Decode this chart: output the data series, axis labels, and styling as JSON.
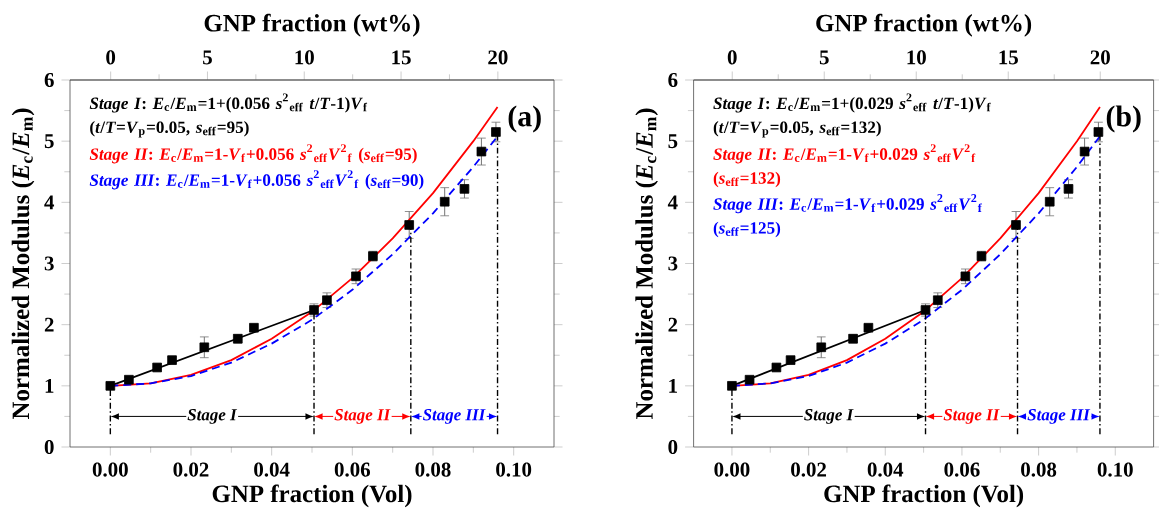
{
  "chart_data": [
    {
      "type": "scatter",
      "xlabel": "GNP fraction (Vol)",
      "x2label": "GNP fraction (wt%)",
      "ylabel": "Normalized Modulus (*E*$_{c}$/*E*$_{m}$)",
      "xlim": [
        -0.01,
        0.11
      ],
      "xticks": [
        {
          "value": 0,
          "label": "0.00"
        },
        {
          "value": 0.02,
          "label": "0.02"
        },
        {
          "value": 0.04,
          "label": "0.04"
        },
        {
          "value": 0.06,
          "label": "0.06"
        },
        {
          "value": 0.08,
          "label": "0.08"
        },
        {
          "value": 0.1,
          "label": "0.10"
        }
      ],
      "x2lim": [
        -2.1,
        22.9
      ],
      "x2ticks": [
        0,
        5,
        10,
        15,
        20
      ],
      "ylim": [
        0,
        6
      ],
      "yticks": [
        0,
        1,
        2,
        3,
        4,
        5,
        6
      ],
      "series": [
        {
          "color": "#000000",
          "marker": "square",
          "x": [
            0,
            0.0046,
            0.0116,
            0.0153,
            0.0233,
            0.0316,
            0.0356,
            0.0505,
            0.0537,
            0.0609,
            0.0651,
            0.0741,
            0.0829,
            0.0878,
            0.092,
            0.0956
          ],
          "values": [
            1.0,
            1.1,
            1.3,
            1.42,
            1.63,
            1.77,
            1.95,
            2.24,
            2.4,
            2.79,
            3.12,
            3.63,
            4.01,
            4.22,
            4.83,
            5.15
          ],
          "errors": [
            null,
            null,
            null,
            0.05,
            0.17,
            0.07,
            null,
            0.1,
            0.12,
            0.12,
            0.08,
            0.22,
            0.23,
            0.15,
            0.22,
            0.16
          ]
        },
        {
          "type": "line",
          "name": "*Stage I*: *E*$_{c}$/*E*$_{m}$=1+(0.056 *s*$^{2}$$_{eff}$ *t*/*T*-1)*V*$_{f}$ (*t*/*T*=*V*$_{p}$=0.05, *s*$_{eff}$=95)",
          "color": "#000000",
          "line_style": "solid",
          "marker": "none",
          "x": [
            0,
            0.0505
          ],
          "values": [
            1.0,
            2.24
          ]
        },
        {
          "type": "line",
          "name": "*Stage II*: *E*$_{c}$/*E*$_{m}$=1-*V*$_{f}$+0.056 *s*$^{2}$$_{eff}$*V*$^{2}$$_{f}$ (*s*$_{eff}$=95)",
          "color": "#ff0000",
          "line_style": "solid",
          "marker": "none",
          "x": [
            0,
            0.01,
            0.02,
            0.03,
            0.04,
            0.05,
            0.06,
            0.07,
            0.08,
            0.09,
            0.096
          ],
          "values": [
            1.0,
            1.04,
            1.18,
            1.42,
            1.77,
            2.21,
            2.76,
            3.41,
            4.15,
            5.0,
            5.56
          ]
        },
        {
          "type": "line",
          "name": "*Stage III*: *E*$_{c}$/*E*$_{m}$=1-*V*$_{f}$+0.056 *s*$^{2}$$_{eff}$*V*$^{2}$$_{f}$ (*s*$_{eff}$=90)",
          "color": "#0000ff",
          "line_style": "dashed",
          "marker": "none",
          "x": [
            0,
            0.01,
            0.02,
            0.03,
            0.04,
            0.05,
            0.06,
            0.07,
            0.08,
            0.09,
            0.096
          ],
          "values": [
            1.0,
            1.04,
            1.16,
            1.38,
            1.69,
            2.08,
            2.57,
            3.15,
            3.82,
            4.58,
            5.08
          ]
        }
      ],
      "ref_lines": [
        {
          "axis": "x",
          "value": 0,
          "color": "#000000"
        },
        {
          "axis": "x",
          "value": 0.0505,
          "color": "#000000"
        },
        {
          "axis": "x",
          "value": 0.0745,
          "color": "#000000"
        },
        {
          "axis": "x",
          "value": 0.096,
          "color": "#000000"
        }
      ],
      "annotations": [
        "(a)",
        "*Stage I*",
        "*Stage II*",
        "*Stage III*"
      ]
    },
    {
      "type": "scatter",
      "xlabel": "GNP fraction (Vol)",
      "x2label": "GNP fraction (wt%)",
      "ylabel": "Normalized Modulus (*E*$_{c}$/*E*$_{m}$)",
      "xlim": [
        -0.01,
        0.11
      ],
      "xticks": [
        {
          "value": 0,
          "label": "0.00"
        },
        {
          "value": 0.02,
          "label": "0.02"
        },
        {
          "value": 0.04,
          "label": "0.04"
        },
        {
          "value": 0.06,
          "label": "0.06"
        },
        {
          "value": 0.08,
          "label": "0.08"
        },
        {
          "value": 0.1,
          "label": "0.10"
        }
      ],
      "x2lim": [
        -2.1,
        22.9
      ],
      "x2ticks": [
        0,
        5,
        10,
        15,
        20
      ],
      "ylim": [
        0,
        6
      ],
      "yticks": [
        0,
        1,
        2,
        3,
        4,
        5,
        6
      ],
      "series": [
        {
          "color": "#000000",
          "marker": "square",
          "x": [
            0,
            0.0046,
            0.0116,
            0.0153,
            0.0233,
            0.0316,
            0.0356,
            0.0505,
            0.0537,
            0.0609,
            0.0651,
            0.0741,
            0.0829,
            0.0878,
            0.092,
            0.0956
          ],
          "values": [
            1.0,
            1.1,
            1.3,
            1.42,
            1.63,
            1.77,
            1.95,
            2.24,
            2.4,
            2.79,
            3.12,
            3.63,
            4.01,
            4.22,
            4.83,
            5.15
          ],
          "errors": [
            null,
            null,
            null,
            0.05,
            0.17,
            0.07,
            null,
            0.1,
            0.12,
            0.12,
            0.08,
            0.22,
            0.23,
            0.15,
            0.22,
            0.16
          ]
        },
        {
          "type": "line",
          "name": "*Stage I*: *E*$_{c}$/*E*$_{m}$=1+(0.029 *s*$^{2}$$_{eff}$ *t*/*T*-1)*V*$_{f}$ (*t*/*T*=*V*$_{p}$=0.05, *s*$_{eff}$=132)",
          "color": "#000000",
          "line_style": "solid",
          "marker": "none",
          "x": [
            0,
            0.0505
          ],
          "values": [
            1.0,
            2.24
          ]
        },
        {
          "type": "line",
          "name": "*Stage II*: *E*$_{c}$/*E*$_{m}$=1-*V*$_{f}$+0.029 *s*$^{2}$$_{eff}$*V*$^{2}$$_{f}$ (*s*$_{eff}$=132)",
          "color": "#ff0000",
          "line_style": "solid",
          "marker": "none",
          "x": [
            0,
            0.01,
            0.02,
            0.03,
            0.04,
            0.05,
            0.06,
            0.07,
            0.08,
            0.09,
            0.096
          ],
          "values": [
            1.0,
            1.04,
            1.18,
            1.42,
            1.77,
            2.21,
            2.76,
            3.41,
            4.15,
            5.0,
            5.56
          ]
        },
        {
          "type": "line",
          "name": "*Stage III*: *E*$_{c}$/*E*$_{m}$=1-*V*$_{f}$+0.029 *s*$^{2}$$_{eff}$*V*$^{2}$$_{f}$ (*s*$_{eff}$=125)",
          "color": "#0000ff",
          "line_style": "dashed",
          "marker": "none",
          "x": [
            0,
            0.01,
            0.02,
            0.03,
            0.04,
            0.05,
            0.06,
            0.07,
            0.08,
            0.09,
            0.096
          ],
          "values": [
            1.0,
            1.04,
            1.16,
            1.38,
            1.69,
            2.08,
            2.57,
            3.15,
            3.82,
            4.58,
            5.08
          ]
        }
      ],
      "ref_lines": [
        {
          "axis": "x",
          "value": 0,
          "color": "#000000"
        },
        {
          "axis": "x",
          "value": 0.0505,
          "color": "#000000"
        },
        {
          "axis": "x",
          "value": 0.0745,
          "color": "#000000"
        },
        {
          "axis": "x",
          "value": 0.096,
          "color": "#000000"
        }
      ],
      "annotations": [
        "(b)",
        "*Stage I*",
        "*Stage II*",
        "*Stage III*"
      ]
    }
  ]
}
